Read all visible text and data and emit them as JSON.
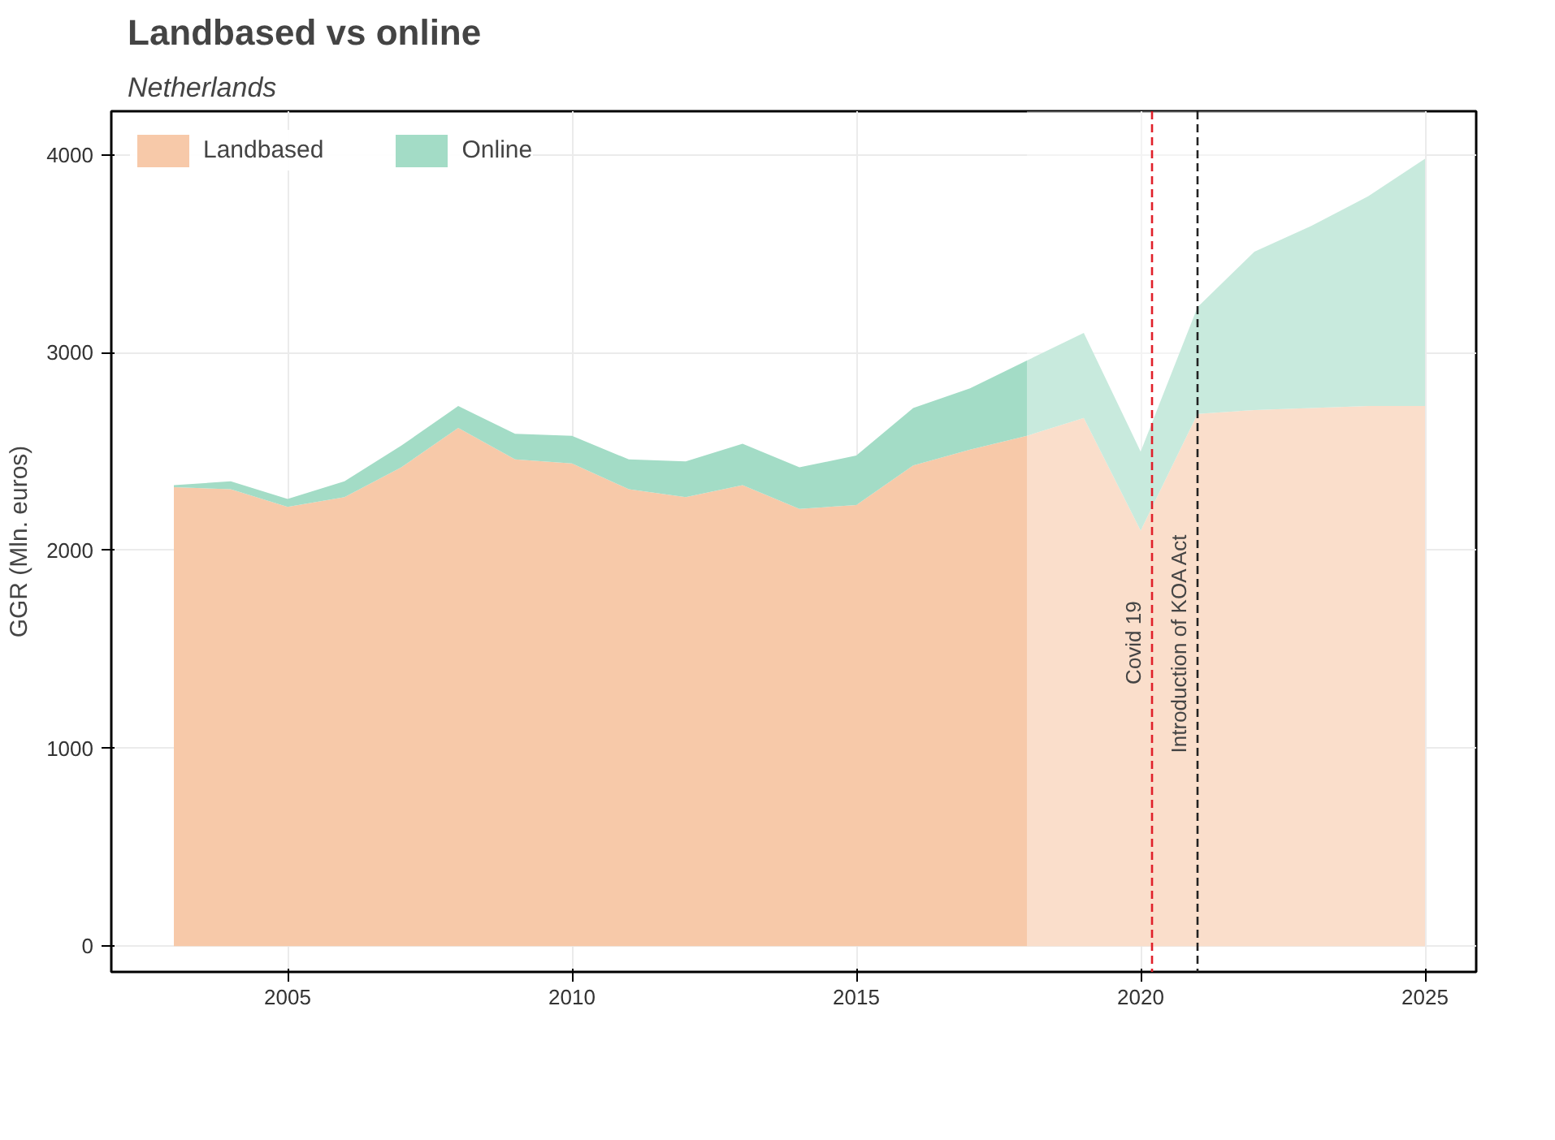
{
  "chart_data": {
    "type": "area",
    "title": "Landbased vs online",
    "subtitle": "Netherlands",
    "ylabel": "GGR (Mln. euros)",
    "x": [
      2003,
      2004,
      2005,
      2006,
      2007,
      2008,
      2009,
      2010,
      2011,
      2012,
      2013,
      2014,
      2015,
      2016,
      2017,
      2018,
      2019,
      2020,
      2021,
      2022,
      2023,
      2024,
      2025
    ],
    "stacked": true,
    "series": [
      {
        "name": "Landbased",
        "color": "#f7c9a9",
        "values": [
          2320,
          2310,
          2220,
          2270,
          2420,
          2620,
          2460,
          2440,
          2310,
          2270,
          2330,
          2210,
          2230,
          2430,
          2510,
          2580,
          2670,
          2100,
          2690,
          2710,
          2720,
          2730,
          2730
        ]
      },
      {
        "name": "Online",
        "color": "#a3dcc6",
        "values": [
          10,
          40,
          40,
          80,
          110,
          110,
          130,
          140,
          150,
          180,
          210,
          210,
          250,
          290,
          310,
          380,
          430,
          400,
          540,
          800,
          920,
          1060,
          1250
        ]
      }
    ],
    "xlim": [
      2001.9,
      2025.9
    ],
    "ylim": [
      -130,
      4220
    ],
    "xticks": [
      2005,
      2010,
      2015,
      2020,
      2025
    ],
    "yticks": [
      0,
      1000,
      2000,
      3000,
      4000
    ],
    "ref_lines": [
      {
        "axis": "x",
        "value": 2020.2,
        "label": "Covid 19",
        "color": "#e0202a",
        "line_style": "dashed"
      },
      {
        "axis": "x",
        "value": 2021,
        "label": "Introduction of KOA Act",
        "color": "#222222",
        "line_style": "dashed"
      }
    ],
    "bands": [
      {
        "axis": "x",
        "from": 2018,
        "to": 2025,
        "color": "#ffffff"
      }
    ],
    "grid": true,
    "legend": "top left"
  }
}
